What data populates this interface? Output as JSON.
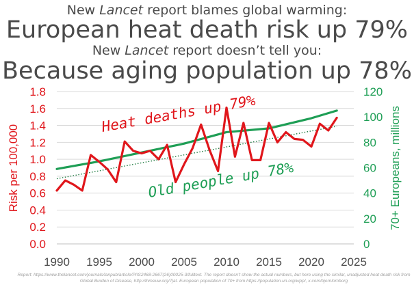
{
  "headline": {
    "line1": {
      "pre": "New ",
      "em": "Lancet",
      "post": " report blames global warming:"
    },
    "line2": "European heat death risk up 79%",
    "line3": {
      "pre": "New ",
      "em": "Lancet",
      "post": " report doesn’t tell you:"
    },
    "line4": "Because aging population up 78%"
  },
  "colors": {
    "heat": "#e0161b",
    "aging": "#1e9e55",
    "grid": "#d9d9d9",
    "text": "#4a4a4a"
  },
  "chart_data": {
    "type": "line",
    "x_ticks": [
      1990,
      1995,
      2000,
      2005,
      2010,
      2015,
      2020,
      2025
    ],
    "xlim": [
      1990,
      2025
    ],
    "grid": true,
    "y_left": {
      "label": "Risk per 100,000",
      "lim": [
        0,
        1.8
      ],
      "ticks": [
        "0.0",
        "0.2",
        "0.4",
        "0.6",
        "0.8",
        "1.0",
        "1.2",
        "1.4",
        "1.6",
        "1.8"
      ]
    },
    "y_right": {
      "label": "70+ Europeans, millions",
      "lim": [
        0,
        120
      ],
      "ticks": [
        "0",
        "20",
        "40",
        "60",
        "80",
        "100",
        "120"
      ]
    },
    "series": [
      {
        "name": "Heat deaths up 79%",
        "axis": "left",
        "x": [
          1990,
          1991,
          1992,
          1993,
          1994,
          1995,
          1996,
          1997,
          1998,
          1999,
          2000,
          2001,
          2002,
          2003,
          2004,
          2005,
          2006,
          2007,
          2008,
          2009,
          2010,
          2011,
          2012,
          2013,
          2014,
          2015,
          2016,
          2017,
          2018,
          2019,
          2020,
          2021,
          2022,
          2023
        ],
        "values": [
          0.63,
          0.75,
          0.7,
          0.63,
          1.05,
          0.97,
          0.88,
          0.73,
          1.21,
          1.1,
          1.07,
          1.1,
          1.0,
          1.17,
          0.73,
          0.94,
          1.13,
          1.41,
          1.11,
          0.86,
          1.61,
          1.03,
          1.43,
          0.99,
          0.99,
          1.43,
          1.2,
          1.32,
          1.24,
          1.23,
          1.15,
          1.42,
          1.34,
          1.49
        ]
      },
      {
        "name": "Old people up 78%",
        "axis": "right",
        "x": [
          1990,
          1995,
          2000,
          2005,
          2010,
          2015,
          2020,
          2023
        ],
        "values": [
          59,
          65,
          72,
          79,
          88,
          91,
          99,
          105
        ]
      }
    ],
    "trend": {
      "axis": "left",
      "x": [
        1990,
        2023
      ],
      "values": [
        0.77,
        1.39
      ]
    },
    "annotations": [
      {
        "text": "Heat deaths up 79%",
        "color": "heat"
      },
      {
        "text": "Old people up 78%",
        "color": "aging"
      }
    ]
  },
  "source": "Report: https://www.thelancet.com/journals/lanpub/article/PIIS2468-2667(26)00025-3/fulltext. The report doesn’t show the actual numbers, but here using the similar, unadjusted heat death risk from Global Burden of Disease, http://ihmeuw.org/7jat. European population of 70+ from https://population.un.org/wpp/, x.com/bjornlomborg"
}
